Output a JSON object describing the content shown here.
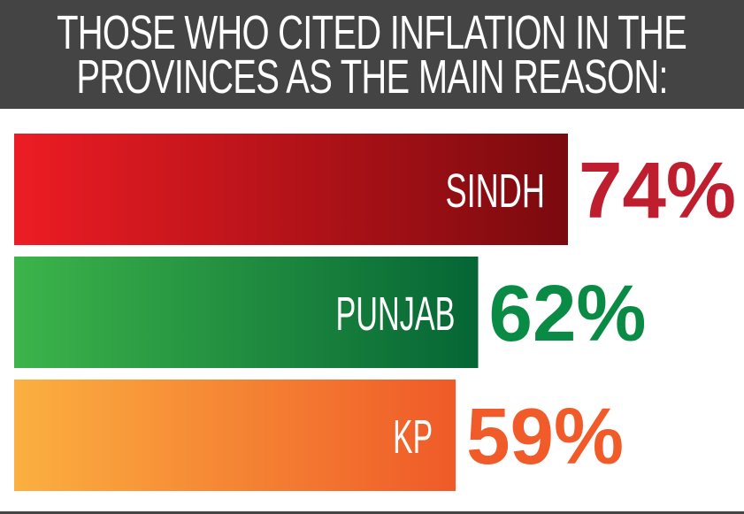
{
  "header": {
    "title_line1": "THOSE WHO CITED INFLATION IN THE",
    "title_line2": "PROVINCES AS THE MAIN REASON:"
  },
  "chart_data": {
    "type": "bar",
    "orientation": "horizontal",
    "title": "THOSE WHO CITED INFLATION IN THE PROVINCES AS THE MAIN REASON:",
    "categories": [
      "SINDH",
      "PUNJAB",
      "KP"
    ],
    "values": [
      74,
      62,
      59
    ],
    "value_labels": [
      "74%",
      "62%",
      "59%"
    ],
    "unit": "%",
    "xlim": [
      0,
      100
    ],
    "grid": false,
    "legend": "none",
    "colors": [
      {
        "start": "#ed1c24",
        "end": "#7a0a0e",
        "label": "#be1e2d"
      },
      {
        "start": "#3cb44a",
        "end": "#056535",
        "label": "#0a8b45"
      },
      {
        "start": "#fbb040",
        "end": "#ef5a28",
        "label": "#f15a29"
      }
    ]
  }
}
